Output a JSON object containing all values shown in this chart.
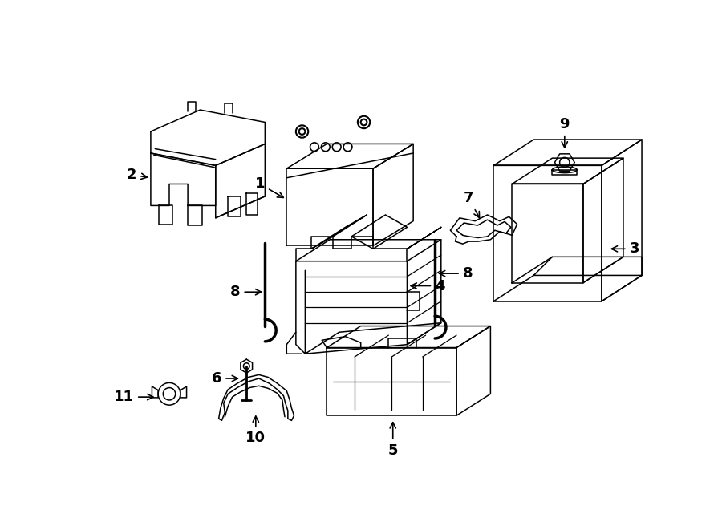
{
  "bg_color": "#ffffff",
  "line_color": "#000000",
  "lw": 1.1,
  "fig_width": 9.0,
  "fig_height": 6.61,
  "dpi": 100
}
